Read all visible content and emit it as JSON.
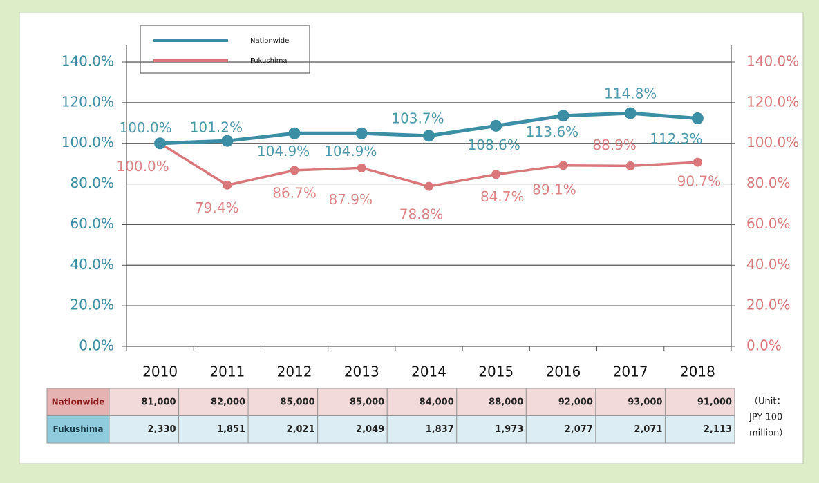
{
  "chart_data": {
    "type": "line",
    "categories": [
      "2010",
      "2011",
      "2012",
      "2013",
      "2014",
      "2015",
      "2016",
      "2017",
      "2018"
    ],
    "series": [
      {
        "name": "Nationwide",
        "color": "#3b8ea3",
        "values": [
          100.0,
          101.2,
          104.9,
          104.9,
          103.7,
          108.6,
          113.6,
          114.8,
          112.3
        ],
        "value_labels": [
          "100.0%",
          "101.2%",
          "104.9%",
          "104.9%",
          "103.7%",
          "108.6%",
          "113.6%",
          "114.8%",
          "112.3%"
        ]
      },
      {
        "name": "Fukushima",
        "color": "#d9777a",
        "axis": "y2",
        "values": [
          100.0,
          79.4,
          86.7,
          87.9,
          78.8,
          84.7,
          89.1,
          88.9,
          90.7
        ],
        "value_labels": [
          "100.0%",
          "79.4%",
          "86.7%",
          "87.9%",
          "78.8%",
          "84.7%",
          "89.1%",
          "88.9%",
          "90.7%"
        ]
      }
    ],
    "ylim": [
      0,
      140
    ],
    "yticks": [
      {
        "value": 0,
        "label": "0.0%"
      },
      {
        "value": 20,
        "label": "20.0%"
      },
      {
        "value": 40,
        "label": "40.0%"
      },
      {
        "value": 60,
        "label": "60.0%"
      },
      {
        "value": 80,
        "label": "80.0%"
      },
      {
        "value": 100,
        "label": "100.0%"
      },
      {
        "value": 120,
        "label": "120.0%"
      },
      {
        "value": 140,
        "label": "140.0%"
      }
    ],
    "y2lim": [
      0,
      140
    ],
    "y2ticks": [
      {
        "value": 0,
        "label": "0.0%"
      },
      {
        "value": 20,
        "label": "20.0%"
      },
      {
        "value": 40,
        "label": "40.0%"
      },
      {
        "value": 60,
        "label": "60.0%"
      },
      {
        "value": 80,
        "label": "80.0%"
      },
      {
        "value": 100,
        "label": "100.0%"
      },
      {
        "value": 120,
        "label": "120.0%"
      },
      {
        "value": 140,
        "label": "140.0%"
      }
    ],
    "grid": true,
    "legend": "top-left"
  },
  "table": {
    "rows": [
      {
        "name": "Nationwide",
        "values": [
          "81,000",
          "82,000",
          "85,000",
          "85,000",
          "84,000",
          "88,000",
          "92,000",
          "93,000",
          "91,000"
        ]
      },
      {
        "name": "Fukushima",
        "values": [
          "2,330",
          "1,851",
          "2,021",
          "2,049",
          "1,837",
          "1,973",
          "2,077",
          "2,071",
          "2,113"
        ]
      }
    ],
    "unit_note": [
      "（Unit：",
      "JPY 100",
      "million）"
    ]
  }
}
